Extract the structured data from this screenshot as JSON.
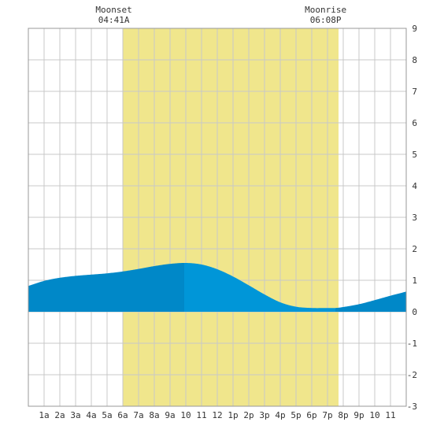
{
  "chart_data": {
    "type": "area",
    "title": "",
    "xlabel": "",
    "ylabel": "",
    "xlim": [
      0,
      24
    ],
    "ylim": [
      -3,
      9
    ],
    "grid": true,
    "x_ticks": [
      {
        "x": 1,
        "label": "1a"
      },
      {
        "x": 2,
        "label": "2a"
      },
      {
        "x": 3,
        "label": "3a"
      },
      {
        "x": 4,
        "label": "4a"
      },
      {
        "x": 5,
        "label": "5a"
      },
      {
        "x": 6,
        "label": "6a"
      },
      {
        "x": 7,
        "label": "7a"
      },
      {
        "x": 8,
        "label": "8a"
      },
      {
        "x": 9,
        "label": "9a"
      },
      {
        "x": 10,
        "label": "10"
      },
      {
        "x": 11,
        "label": "11"
      },
      {
        "x": 12,
        "label": "12"
      },
      {
        "x": 13,
        "label": "1p"
      },
      {
        "x": 14,
        "label": "2p"
      },
      {
        "x": 15,
        "label": "3p"
      },
      {
        "x": 16,
        "label": "4p"
      },
      {
        "x": 17,
        "label": "5p"
      },
      {
        "x": 18,
        "label": "6p"
      },
      {
        "x": 19,
        "label": "7p"
      },
      {
        "x": 20,
        "label": "8p"
      },
      {
        "x": 21,
        "label": "9p"
      },
      {
        "x": 22,
        "label": "10"
      },
      {
        "x": 23,
        "label": "11"
      }
    ],
    "y_ticks": [
      -3,
      -2,
      -1,
      0,
      1,
      2,
      3,
      4,
      5,
      6,
      7,
      8,
      9
    ],
    "daylight": {
      "start": 6.0,
      "end": 19.7
    },
    "annotations": [
      {
        "title": "Moonset",
        "time": "04:41A",
        "x": 4.68
      },
      {
        "title": "Moonrise",
        "time": "06:08P",
        "x": 18.13
      }
    ],
    "tide_highlight": {
      "start": 9.9,
      "end": 19.5
    },
    "series": [
      {
        "x": [
          0,
          1,
          2,
          3,
          4,
          5,
          6,
          7,
          8,
          9,
          10,
          11,
          12,
          13,
          14,
          15,
          16,
          17,
          18,
          19,
          19.5,
          20,
          21,
          22,
          23,
          24
        ],
        "values": [
          0.82,
          0.98,
          1.08,
          1.14,
          1.18,
          1.22,
          1.28,
          1.36,
          1.45,
          1.52,
          1.55,
          1.5,
          1.35,
          1.12,
          0.84,
          0.55,
          0.3,
          0.16,
          0.12,
          0.12,
          0.12,
          0.15,
          0.24,
          0.37,
          0.51,
          0.64
        ]
      }
    ],
    "colors": {
      "daylight": "#f0e68c",
      "tide": "#0088c8",
      "tide_highlight": "#0096d8",
      "grid": "#c8c8c8"
    }
  }
}
